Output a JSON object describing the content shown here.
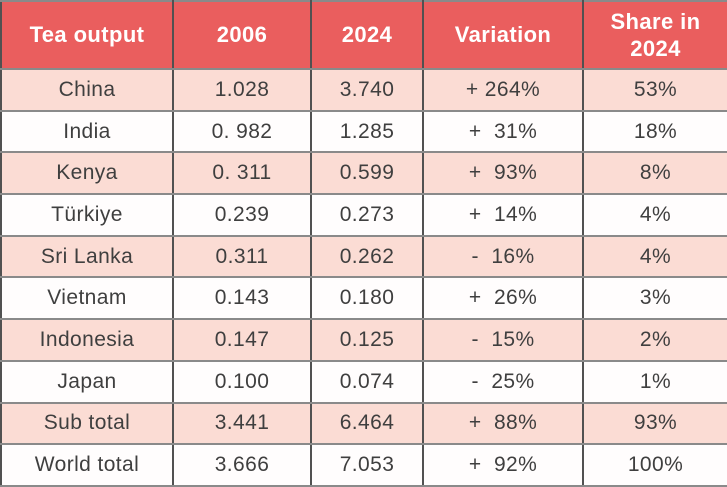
{
  "title": "Tea output comparison table",
  "colors": {
    "header_bg": "#ea5e5e",
    "header_text": "#ffffff",
    "row_pink": "#fbdcd4",
    "row_white": "#fffdfd",
    "body_text": "#3f3f3f",
    "border_vertical": "#515151",
    "border_horizontal": "#8a8a8a"
  },
  "table": {
    "headers": [
      "Tea output",
      "2006",
      "2024",
      "Variation",
      "Share in 2024"
    ],
    "rows": [
      {
        "country": "China",
        "y2006": "1.028",
        "y2024": "3.740",
        "variation": "+ 264%",
        "share": "53%"
      },
      {
        "country": "India",
        "y2006": "0. 982",
        "y2024": "1.285",
        "variation": "+  31%",
        "share": "18%"
      },
      {
        "country": "Kenya",
        "y2006": "0. 311",
        "y2024": "0.599",
        "variation": "+  93%",
        "share": "8%"
      },
      {
        "country": "Türkiye",
        "y2006": "0.239",
        "y2024": "0.273",
        "variation": "+  14%",
        "share": "4%"
      },
      {
        "country": "Sri Lanka",
        "y2006": "0.311",
        "y2024": "0.262",
        "variation": "-  16%",
        "share": "4%"
      },
      {
        "country": "Vietnam",
        "y2006": "0.143",
        "y2024": "0.180",
        "variation": "+  26%",
        "share": "3%"
      },
      {
        "country": "Indonesia",
        "y2006": "0.147",
        "y2024": "0.125",
        "variation": "-  15%",
        "share": "2%"
      },
      {
        "country": "Japan",
        "y2006": "0.100",
        "y2024": "0.074",
        "variation": "-  25%",
        "share": "1%"
      },
      {
        "country": "Sub total",
        "y2006": "3.441",
        "y2024": "6.464",
        "variation": "+  88%",
        "share": "93%"
      },
      {
        "country": "World total",
        "y2006": "3.666",
        "y2024": "7.053",
        "variation": "+  92%",
        "share": "100%"
      }
    ]
  },
  "chart_data": {
    "type": "table",
    "title": "Tea output",
    "categories": [
      "China",
      "India",
      "Kenya",
      "Türkiye",
      "Sri Lanka",
      "Vietnam",
      "Indonesia",
      "Japan",
      "Sub total",
      "World total"
    ],
    "series": [
      {
        "name": "2006",
        "values": [
          1.028,
          0.982,
          0.311,
          0.239,
          0.311,
          0.143,
          0.147,
          0.1,
          3.441,
          3.666
        ]
      },
      {
        "name": "2024",
        "values": [
          3.74,
          1.285,
          0.599,
          0.273,
          0.262,
          0.18,
          0.125,
          0.074,
          6.464,
          7.053
        ]
      },
      {
        "name": "Variation %",
        "values": [
          264,
          31,
          93,
          14,
          -16,
          26,
          -15,
          -25,
          88,
          92
        ]
      },
      {
        "name": "Share in 2024 %",
        "values": [
          53,
          18,
          8,
          4,
          4,
          3,
          2,
          1,
          93,
          100
        ]
      }
    ]
  }
}
